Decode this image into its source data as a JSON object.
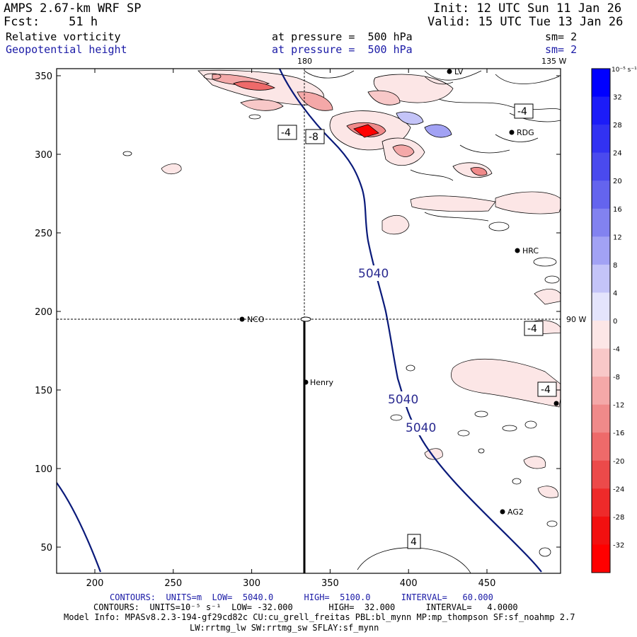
{
  "header": {
    "model": "AMPS 2.67-km WRF SP",
    "forecast": "Fcst:    51 h",
    "init": "Init: 12 UTC Sun 11 Jan 26",
    "valid": "Valid: 15 UTC Tue 13 Jan 26",
    "field1_name": "Relative vorticity",
    "field1_level": "at pressure =  500 hPa",
    "field1_smooth": "sm= 2",
    "field2_name": "Geopotential height",
    "field2_level": "at pressure =  500 hPa",
    "field2_smooth": "sm= 2"
  },
  "map": {
    "lon_top_180": "180",
    "lon_top_135w": "135 W",
    "lon_right_90w": "90 W",
    "x_ticks": [
      "200",
      "250",
      "300",
      "350",
      "400",
      "450"
    ],
    "y_ticks": [
      "50",
      "100",
      "150",
      "200",
      "250",
      "300",
      "350"
    ],
    "stations": [
      {
        "name": "NCO"
      },
      {
        "name": "Henry"
      },
      {
        "name": "RDG"
      },
      {
        "name": "HRC"
      },
      {
        "name": "AG2"
      },
      {
        "name": "LV"
      }
    ],
    "height_labels": [
      "5040",
      "5040",
      "5040"
    ],
    "vort_labels": [
      "-4",
      "-8",
      "-4",
      "-4",
      "-4",
      "4"
    ],
    "colors": {
      "height_line": "#0a1a7a",
      "frame": "#000000"
    }
  },
  "colorbar": {
    "unit": "10⁻⁵ s⁻¹",
    "labels": [
      "32",
      "28",
      "24",
      "20",
      "16",
      "12",
      "8",
      "4",
      "0",
      "-4",
      "-8",
      "-12",
      "-16",
      "-20",
      "-24",
      "-28",
      "-32"
    ],
    "positive_colors": [
      "#0000ff",
      "#1c1cf8",
      "#3232f2",
      "#4a4aee",
      "#6464ee",
      "#8282f0",
      "#a2a2f4",
      "#c4c4f8",
      "#e4e4fc"
    ],
    "negative_colors": [
      "#fce6e6",
      "#f8c8c8",
      "#f4a8a8",
      "#f08a8a",
      "#ee6a6a",
      "#ec4a4a",
      "#ee2a2a",
      "#f21010",
      "#ff0000"
    ]
  },
  "footer": {
    "height_contours": "CONTOURS:  UNITS=m  LOW=  5040.0      HIGH=  5100.0      INTERVAL=   60.000",
    "vort_contours": "CONTOURS:  UNITS=10⁻⁵ s⁻¹  LOW= -32.000       HIGH=  32.000      INTERVAL=   4.0000",
    "model_info": "Model Info: MPASv8.2.3-194-gf29cd82c CU:cu_grell_freitas PBL:bl_mynn MP:mp_thompson SF:sf_noahmp 2.7",
    "model_info2": "LW:rrtmg_lw SW:rrtmg_sw SFLAY:sf_mynn"
  }
}
